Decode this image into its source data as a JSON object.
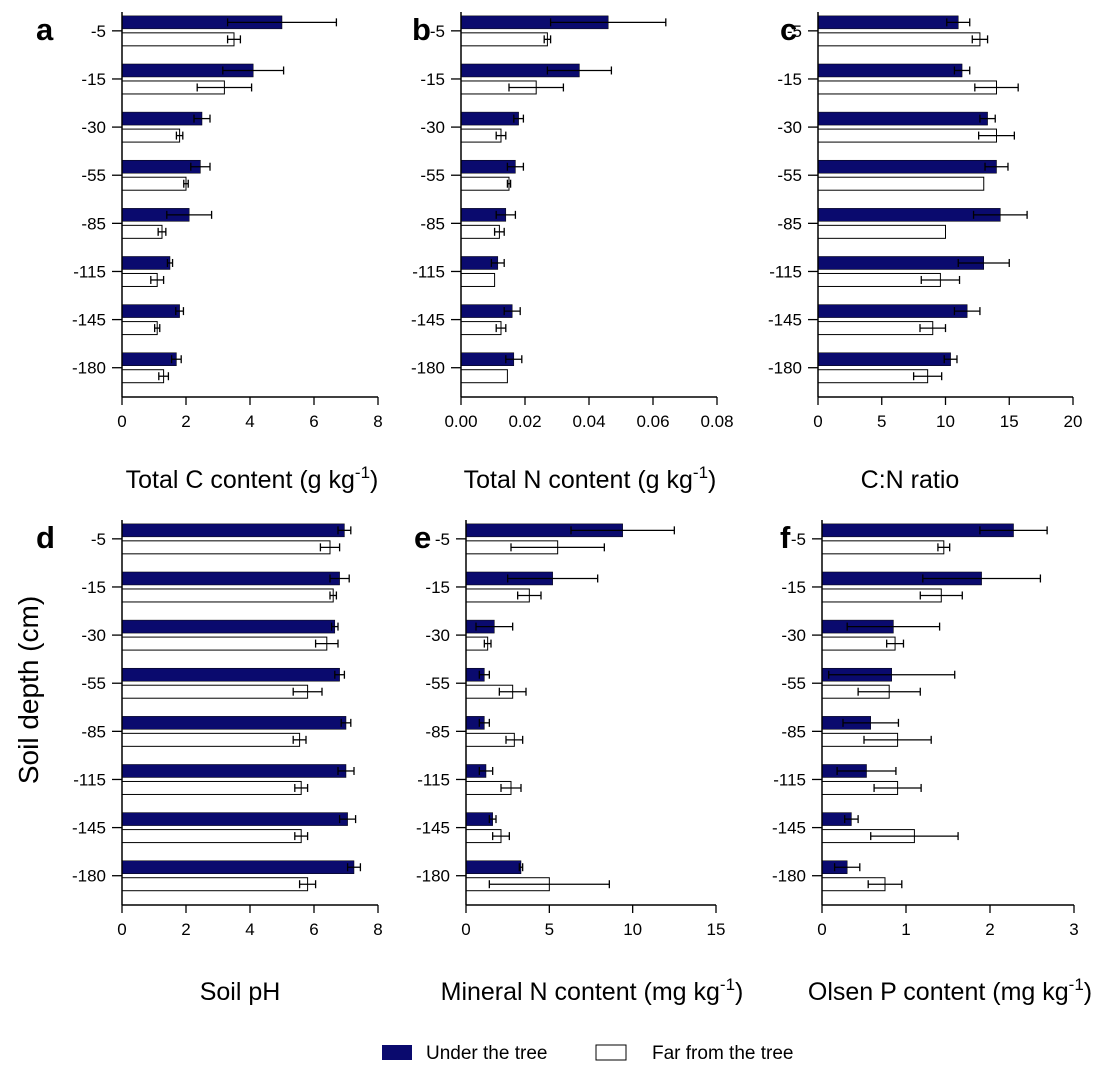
{
  "ylabel": "Soil depth (cm)",
  "legend": {
    "position": "bottom-center",
    "items": [
      {
        "label": "Under the tree",
        "color": "#0a0a6e",
        "fill": "solid"
      },
      {
        "label": "Far from the tree",
        "color": "#ffffff",
        "fill": "open"
      }
    ]
  },
  "chart_data": [
    {
      "panel": "a",
      "type": "bar",
      "orientation": "horizontal",
      "categories": [
        "-5",
        "-15",
        "-30",
        "-55",
        "-85",
        "-115",
        "-145",
        "-180"
      ],
      "xlabel": "Total C content (g kg",
      "xlabel_sup": "-1",
      "xlabel_tail": ")",
      "xlim": [
        0,
        8
      ],
      "xticks": [
        0,
        2,
        4,
        6,
        8
      ],
      "tick_decimals": 0,
      "series": [
        {
          "name": "Under the tree",
          "values": [
            5.0,
            4.1,
            2.5,
            2.45,
            2.1,
            1.5,
            1.8,
            1.7
          ],
          "errors": [
            1.7,
            0.95,
            0.25,
            0.3,
            0.7,
            0.08,
            0.12,
            0.15
          ]
        },
        {
          "name": "Far from the tree",
          "values": [
            3.5,
            3.2,
            1.8,
            2.0,
            1.25,
            1.1,
            1.1,
            1.3
          ],
          "errors": [
            0.2,
            0.85,
            0.1,
            0.07,
            0.12,
            0.2,
            0.08,
            0.15
          ]
        }
      ]
    },
    {
      "panel": "b",
      "type": "bar",
      "orientation": "horizontal",
      "categories": [
        "-5",
        "-15",
        "-30",
        "-55",
        "-85",
        "-115",
        "-145",
        "-180"
      ],
      "xlabel": "Total N content (g kg",
      "xlabel_sup": "-1",
      "xlabel_tail": ")",
      "xlim": [
        0,
        0.08
      ],
      "xticks": [
        0,
        0.02,
        0.04,
        0.06,
        0.08
      ],
      "tick_decimals": 2,
      "series": [
        {
          "name": "Under the tree",
          "values": [
            0.046,
            0.037,
            0.018,
            0.017,
            0.014,
            0.0115,
            0.016,
            0.0165
          ],
          "errors": [
            0.018,
            0.01,
            0.0015,
            0.0025,
            0.003,
            0.002,
            0.0025,
            0.0025
          ]
        },
        {
          "name": "Far from the tree",
          "values": [
            0.027,
            0.0235,
            0.0125,
            0.015,
            0.012,
            0.0105,
            0.0125,
            0.0145
          ],
          "errors": [
            0.001,
            0.0085,
            0.0015,
            0.0005,
            0.0015,
            0,
            0.0015,
            0
          ]
        }
      ]
    },
    {
      "panel": "c",
      "type": "bar",
      "orientation": "horizontal",
      "categories": [
        "-5",
        "-15",
        "-30",
        "-55",
        "-85",
        "-115",
        "-145",
        "-180"
      ],
      "xlabel": "C:N ratio",
      "xlim": [
        0,
        20
      ],
      "xticks": [
        0,
        5,
        10,
        15,
        20
      ],
      "tick_decimals": 0,
      "series": [
        {
          "name": "Under the tree",
          "values": [
            11.0,
            11.3,
            13.3,
            14.0,
            14.3,
            13.0,
            11.7,
            10.4
          ],
          "errors": [
            0.9,
            0.6,
            0.6,
            0.9,
            2.1,
            2.0,
            1.0,
            0.5
          ]
        },
        {
          "name": "Far from the tree",
          "values": [
            12.7,
            14.0,
            14.0,
            13.0,
            10.0,
            9.6,
            9.0,
            8.6
          ],
          "errors": [
            0.6,
            1.7,
            1.4,
            0,
            0,
            1.5,
            1.0,
            1.1
          ]
        }
      ]
    },
    {
      "panel": "d",
      "type": "bar",
      "orientation": "horizontal",
      "categories": [
        "-5",
        "-15",
        "-30",
        "-55",
        "-85",
        "-115",
        "-145",
        "-180"
      ],
      "xlabel": "Soil pH",
      "xlim": [
        0,
        8
      ],
      "xticks": [
        0,
        2,
        4,
        6,
        8
      ],
      "tick_decimals": 0,
      "series": [
        {
          "name": "Under the tree",
          "values": [
            6.95,
            6.8,
            6.65,
            6.8,
            7.0,
            7.0,
            7.05,
            7.25
          ],
          "errors": [
            0.2,
            0.3,
            0.1,
            0.15,
            0.15,
            0.25,
            0.25,
            0.2
          ]
        },
        {
          "name": "Far from the tree",
          "values": [
            6.5,
            6.6,
            6.4,
            5.8,
            5.55,
            5.6,
            5.6,
            5.8
          ],
          "errors": [
            0.3,
            0.1,
            0.35,
            0.45,
            0.2,
            0.2,
            0.2,
            0.25
          ]
        }
      ]
    },
    {
      "panel": "e",
      "type": "bar",
      "orientation": "horizontal",
      "categories": [
        "-5",
        "-15",
        "-30",
        "-55",
        "-85",
        "-115",
        "-145",
        "-180"
      ],
      "xlabel": "Mineral N content (mg kg",
      "xlabel_sup": "-1",
      "xlabel_tail": ")",
      "xlim": [
        0,
        15
      ],
      "xticks": [
        0,
        5,
        10,
        15
      ],
      "tick_decimals": 0,
      "series": [
        {
          "name": "Under the tree",
          "values": [
            9.4,
            5.2,
            1.7,
            1.1,
            1.1,
            1.2,
            1.6,
            3.3
          ],
          "errors": [
            3.1,
            2.7,
            1.1,
            0.3,
            0.3,
            0.4,
            0.2,
            0.1
          ]
        },
        {
          "name": "Far from the tree",
          "values": [
            5.5,
            3.8,
            1.3,
            2.8,
            2.9,
            2.7,
            2.1,
            5.0
          ],
          "errors": [
            2.8,
            0.7,
            0.2,
            0.8,
            0.5,
            0.6,
            0.5,
            3.6
          ]
        }
      ]
    },
    {
      "panel": "f",
      "type": "bar",
      "orientation": "horizontal",
      "categories": [
        "-5",
        "-15",
        "-30",
        "-55",
        "-85",
        "-115",
        "-145",
        "-180"
      ],
      "xlabel": "Olsen P content (mg kg",
      "xlabel_sup": "-1",
      "xlabel_tail": ")",
      "xlim": [
        0,
        3
      ],
      "xticks": [
        0,
        1,
        2,
        3
      ],
      "tick_decimals": 0,
      "series": [
        {
          "name": "Under the tree",
          "values": [
            2.28,
            1.9,
            0.85,
            0.83,
            0.58,
            0.53,
            0.35,
            0.3
          ],
          "errors": [
            0.4,
            0.7,
            0.55,
            0.75,
            0.33,
            0.35,
            0.08,
            0.15
          ]
        },
        {
          "name": "Far from the tree",
          "values": [
            1.45,
            1.42,
            0.87,
            0.8,
            0.9,
            0.9,
            1.1,
            0.75
          ],
          "errors": [
            0.07,
            0.25,
            0.1,
            0.37,
            0.4,
            0.28,
            0.52,
            0.2
          ]
        }
      ]
    }
  ]
}
